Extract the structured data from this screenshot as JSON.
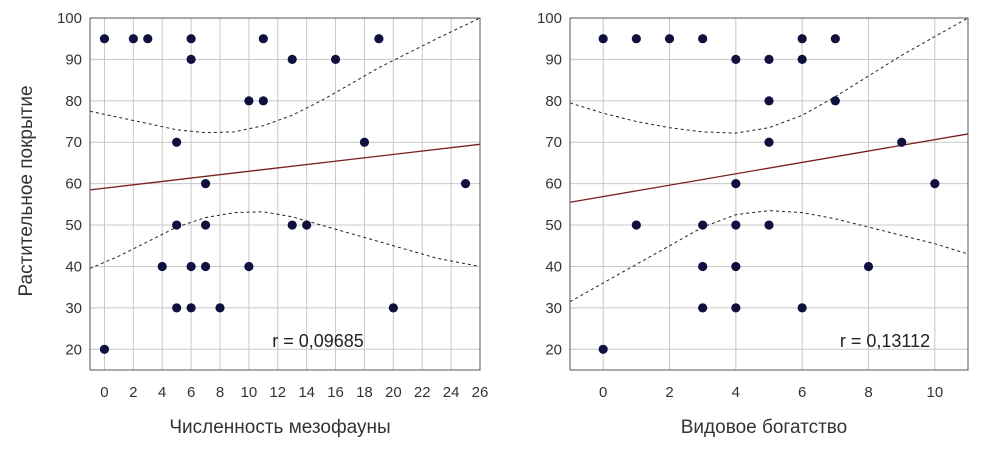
{
  "colors": {
    "point": "#101040",
    "regression": "#7a1f1f",
    "grid": "#c8c8c8",
    "frame": "#555555",
    "confidence": "#222222"
  },
  "shared_ylabel": "Растительное покрытие",
  "chart_data": [
    {
      "type": "scatter",
      "xlabel": "Численность мезофауны",
      "ylabel": "Растительное покрытие",
      "xlim": [
        -1,
        26
      ],
      "ylim": [
        15,
        100
      ],
      "x_ticks": [
        "0",
        "2",
        "4",
        "6",
        "8",
        "10",
        "12",
        "14",
        "16",
        "18",
        "20",
        "22",
        "24",
        "26"
      ],
      "y_ticks": [
        "20",
        "30",
        "40",
        "50",
        "60",
        "70",
        "80",
        "90",
        "100"
      ],
      "grid": true,
      "annotation": "r =  0,09685",
      "points": [
        {
          "x": 0,
          "y": 95
        },
        {
          "x": 2,
          "y": 95
        },
        {
          "x": 3,
          "y": 95
        },
        {
          "x": 6,
          "y": 95
        },
        {
          "x": 11,
          "y": 95
        },
        {
          "x": 19,
          "y": 95
        },
        {
          "x": 6,
          "y": 90
        },
        {
          "x": 13,
          "y": 90
        },
        {
          "x": 16,
          "y": 90
        },
        {
          "x": 10,
          "y": 80
        },
        {
          "x": 11,
          "y": 80
        },
        {
          "x": 5,
          "y": 70
        },
        {
          "x": 18,
          "y": 70
        },
        {
          "x": 7,
          "y": 60
        },
        {
          "x": 25,
          "y": 60
        },
        {
          "x": 5,
          "y": 50
        },
        {
          "x": 7,
          "y": 50
        },
        {
          "x": 13,
          "y": 50
        },
        {
          "x": 14,
          "y": 50
        },
        {
          "x": 4,
          "y": 40
        },
        {
          "x": 6,
          "y": 40
        },
        {
          "x": 7,
          "y": 40
        },
        {
          "x": 10,
          "y": 40
        },
        {
          "x": 5,
          "y": 30
        },
        {
          "x": 6,
          "y": 30
        },
        {
          "x": 8,
          "y": 30
        },
        {
          "x": 20,
          "y": 30
        },
        {
          "x": 0,
          "y": 20
        }
      ],
      "regression": {
        "start": [
          -1,
          58.5
        ],
        "end": [
          26,
          69.5
        ]
      },
      "confidence_upper": [
        [
          -1,
          77.5
        ],
        [
          1,
          76
        ],
        [
          3,
          74.5
        ],
        [
          5,
          73
        ],
        [
          7,
          72.3
        ],
        [
          9,
          72.5
        ],
        [
          11,
          74
        ],
        [
          13,
          76.5
        ],
        [
          15,
          80
        ],
        [
          17,
          84
        ],
        [
          19,
          88
        ],
        [
          21,
          91.5
        ],
        [
          23,
          95
        ],
        [
          26,
          100
        ]
      ],
      "confidence_lower": [
        [
          -1,
          39.5
        ],
        [
          1,
          42.5
        ],
        [
          3,
          46
        ],
        [
          5,
          49.5
        ],
        [
          7,
          51.8
        ],
        [
          9,
          53
        ],
        [
          11,
          53.2
        ],
        [
          13,
          52
        ],
        [
          15,
          50
        ],
        [
          17,
          48
        ],
        [
          19,
          46
        ],
        [
          21,
          44
        ],
        [
          23,
          42
        ],
        [
          26,
          40
        ]
      ]
    },
    {
      "type": "scatter",
      "xlabel": "Видовое богатство",
      "ylabel": "",
      "xlim": [
        -1,
        11
      ],
      "ylim": [
        15,
        100
      ],
      "x_ticks": [
        "0",
        "2",
        "4",
        "6",
        "8",
        "10"
      ],
      "y_ticks": [
        "20",
        "30",
        "40",
        "50",
        "60",
        "70",
        "80",
        "90",
        "100"
      ],
      "grid": true,
      "annotation": "r =  0,13112",
      "points": [
        {
          "x": 0,
          "y": 95
        },
        {
          "x": 1,
          "y": 95
        },
        {
          "x": 2,
          "y": 95
        },
        {
          "x": 3,
          "y": 95
        },
        {
          "x": 6,
          "y": 95
        },
        {
          "x": 7,
          "y": 95
        },
        {
          "x": 4,
          "y": 90
        },
        {
          "x": 5,
          "y": 90
        },
        {
          "x": 6,
          "y": 90
        },
        {
          "x": 5,
          "y": 80
        },
        {
          "x": 7,
          "y": 80
        },
        {
          "x": 5,
          "y": 70
        },
        {
          "x": 9,
          "y": 70
        },
        {
          "x": 4,
          "y": 60
        },
        {
          "x": 10,
          "y": 60
        },
        {
          "x": 1,
          "y": 50
        },
        {
          "x": 3,
          "y": 50
        },
        {
          "x": 4,
          "y": 50
        },
        {
          "x": 5,
          "y": 50
        },
        {
          "x": 3,
          "y": 40
        },
        {
          "x": 4,
          "y": 40
        },
        {
          "x": 8,
          "y": 40
        },
        {
          "x": 3,
          "y": 30
        },
        {
          "x": 4,
          "y": 30
        },
        {
          "x": 6,
          "y": 30
        },
        {
          "x": 0,
          "y": 20
        }
      ],
      "regression": {
        "start": [
          -1,
          55.5
        ],
        "end": [
          11,
          72
        ]
      },
      "confidence_upper": [
        [
          -1,
          79.5
        ],
        [
          0,
          77
        ],
        [
          1,
          75
        ],
        [
          2,
          73.5
        ],
        [
          3,
          72.5
        ],
        [
          4,
          72.2
        ],
        [
          5,
          73.5
        ],
        [
          6,
          76.5
        ],
        [
          7,
          81
        ],
        [
          8,
          86
        ],
        [
          9,
          91
        ],
        [
          10,
          95.5
        ],
        [
          11,
          100
        ]
      ],
      "confidence_lower": [
        [
          -1,
          31.5
        ],
        [
          0,
          36
        ],
        [
          1,
          40.5
        ],
        [
          2,
          45
        ],
        [
          3,
          49.5
        ],
        [
          4,
          52.5
        ],
        [
          5,
          53.5
        ],
        [
          6,
          53
        ],
        [
          7,
          51.5
        ],
        [
          8,
          49.5
        ],
        [
          9,
          47.5
        ],
        [
          10,
          45.5
        ],
        [
          11,
          43
        ]
      ]
    }
  ]
}
